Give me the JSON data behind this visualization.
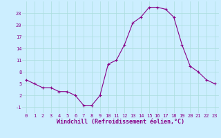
{
  "x": [
    0,
    1,
    2,
    3,
    4,
    5,
    6,
    7,
    8,
    9,
    10,
    11,
    12,
    13,
    14,
    15,
    16,
    17,
    18,
    19,
    20,
    21,
    22,
    23
  ],
  "y": [
    6,
    5,
    4,
    4,
    3,
    3,
    2,
    -0.5,
    -0.5,
    2,
    10,
    11,
    15,
    20.5,
    22,
    24.5,
    24.5,
    24,
    22,
    15,
    9.5,
    8,
    6,
    5
  ],
  "line_color": "#880088",
  "marker": "+",
  "marker_color": "#880088",
  "bg_color": "#cceeff",
  "grid_color": "#aadddd",
  "xlabel": "Windchill (Refroidissement éolien,°C)",
  "xlabel_color": "#880088",
  "tick_color": "#880088",
  "xlim": [
    -0.5,
    23.5
  ],
  "ylim": [
    -2.5,
    26
  ],
  "yticks": [
    -1,
    2,
    5,
    8,
    11,
    14,
    17,
    20,
    23
  ],
  "xticks": [
    0,
    1,
    2,
    3,
    4,
    5,
    6,
    7,
    8,
    9,
    10,
    11,
    12,
    13,
    14,
    15,
    16,
    17,
    18,
    19,
    20,
    21,
    22,
    23
  ],
  "tick_fontsize": 5.0,
  "xlabel_fontsize": 6.0
}
